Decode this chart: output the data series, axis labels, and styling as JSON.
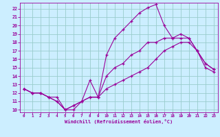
{
  "xlabel": "Windchill (Refroidissement éolien,°C)",
  "bg_color": "#cceeff",
  "line_color": "#990099",
  "grid_color": "#99cccc",
  "xlim": [
    -0.5,
    23.5
  ],
  "ylim": [
    9.7,
    22.7
  ],
  "xticks": [
    0,
    1,
    2,
    3,
    4,
    5,
    6,
    7,
    8,
    9,
    10,
    11,
    12,
    13,
    14,
    15,
    16,
    17,
    18,
    19,
    20,
    21,
    22,
    23
  ],
  "yticks": [
    10,
    11,
    12,
    13,
    14,
    15,
    16,
    17,
    18,
    19,
    20,
    21,
    22
  ],
  "line_spike_x": [
    0,
    1,
    2,
    3,
    4,
    5,
    6,
    7,
    8,
    9,
    10,
    11,
    12,
    13,
    14,
    15,
    16,
    17,
    18,
    19,
    20,
    21,
    22,
    23
  ],
  "line_spike_y": [
    12.5,
    12.0,
    12.0,
    11.5,
    11.0,
    10.0,
    10.0,
    11.0,
    13.5,
    11.5,
    16.5,
    18.5,
    19.5,
    20.5,
    21.5,
    22.1,
    22.5,
    20.0,
    18.5,
    19.0,
    18.5,
    17.0,
    15.5,
    14.8
  ],
  "line_mid_x": [
    0,
    1,
    2,
    3,
    4,
    5,
    6,
    7,
    8,
    9,
    10,
    11,
    12,
    13,
    14,
    15,
    16,
    17,
    18,
    19,
    20,
    21,
    22,
    23
  ],
  "line_mid_y": [
    12.5,
    12.0,
    12.0,
    11.5,
    11.0,
    10.0,
    10.5,
    11.0,
    11.5,
    11.5,
    14.0,
    15.0,
    15.5,
    16.5,
    17.0,
    18.0,
    18.0,
    18.5,
    18.5,
    18.5,
    18.5,
    17.0,
    15.5,
    14.8
  ],
  "line_low_x": [
    0,
    1,
    2,
    3,
    4,
    5,
    6,
    7,
    8,
    9,
    10,
    11,
    12,
    13,
    14,
    15,
    16,
    17,
    18,
    19,
    20,
    21,
    22,
    23
  ],
  "line_low_y": [
    12.5,
    12.0,
    12.0,
    11.5,
    11.5,
    10.0,
    10.5,
    11.0,
    11.5,
    11.5,
    12.5,
    13.0,
    13.5,
    14.0,
    14.5,
    15.0,
    16.0,
    17.0,
    17.5,
    18.0,
    18.0,
    17.0,
    15.0,
    14.5
  ]
}
